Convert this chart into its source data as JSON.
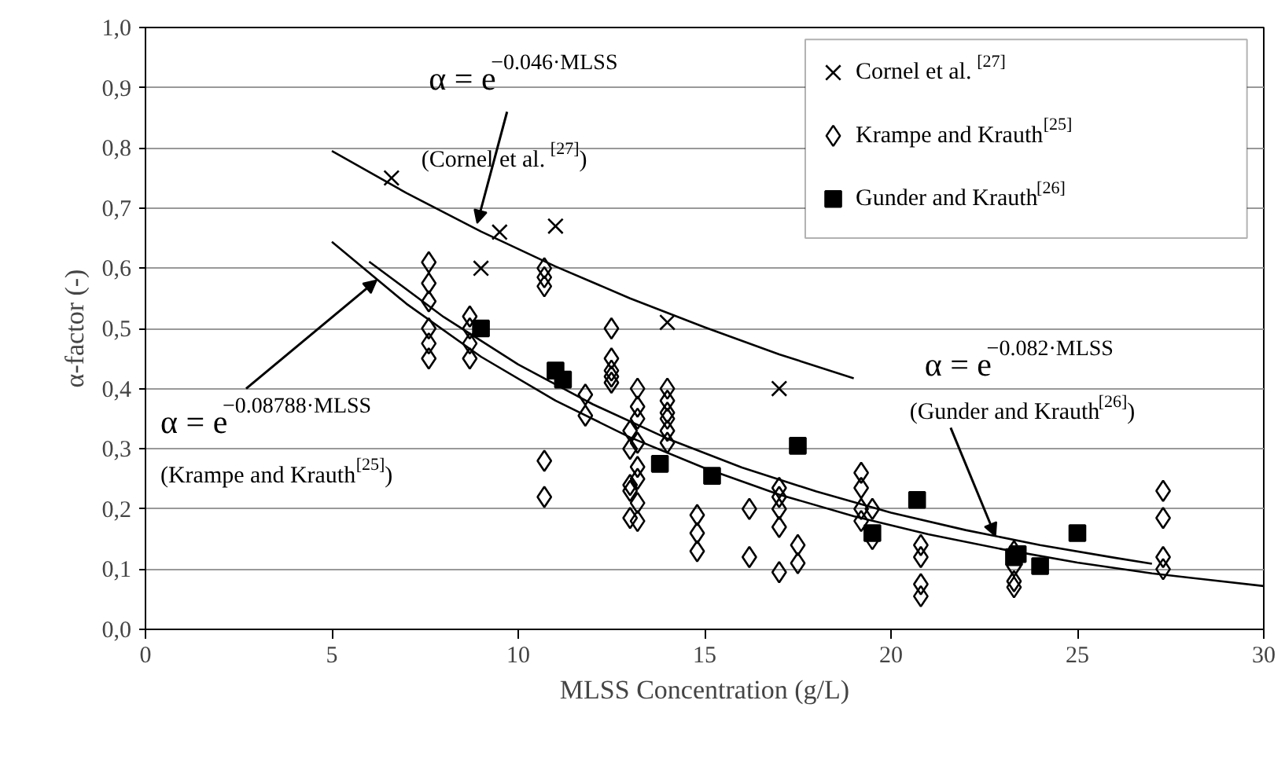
{
  "chart_data": {
    "type": "scatter",
    "xlabel": "MLSS Concentration (g/L)",
    "ylabel": "α-factor (-)",
    "xlim": [
      0,
      30
    ],
    "ylim": [
      0,
      1
    ],
    "xticks": [
      0,
      5,
      10,
      15,
      20,
      25,
      30
    ],
    "yticks": [
      {
        "value": 0,
        "label": "0,0"
      },
      {
        "value": 0.1,
        "label": "0,1"
      },
      {
        "value": 0.2,
        "label": "0,2"
      },
      {
        "value": 0.3,
        "label": "0,3"
      },
      {
        "value": 0.4,
        "label": "0,4"
      },
      {
        "value": 0.5,
        "label": "0,5"
      },
      {
        "value": 0.6,
        "label": "0,6"
      },
      {
        "value": 0.7,
        "label": "0,7"
      },
      {
        "value": 0.8,
        "label": "0,8"
      },
      {
        "value": 0.9,
        "label": "0,9"
      },
      {
        "value": 1,
        "label": "1,0"
      }
    ],
    "grid": "y",
    "legend": "top right",
    "series": [
      {
        "name": "Cornel et al.$^{[27]}$",
        "marker": "cross",
        "color": "#000000",
        "x": [
          6.6,
          9,
          9.5,
          11,
          14,
          17
        ],
        "values": [
          0.75,
          0.6,
          0.66,
          0.67,
          0.51,
          0.4
        ]
      },
      {
        "name": "Krampe and Krauth$^{[25]}$",
        "marker": "diamond",
        "color": "#000000",
        "x": [
          7.6,
          7.6,
          7.6,
          7.6,
          7.6,
          7.6,
          8.7,
          8.7,
          8.7,
          8.7,
          10.7,
          10.7,
          10.7,
          10.7,
          10.7,
          11.8,
          11.8,
          12.5,
          12.5,
          12.5,
          12.5,
          12.5,
          13,
          13,
          13,
          13,
          13,
          13.2,
          13.2,
          13.2,
          13.2,
          13.2,
          13.2,
          13.2,
          13.2,
          14,
          14,
          14,
          14,
          14,
          14,
          14.8,
          14.8,
          14.8,
          16.2,
          16.2,
          17,
          17,
          17,
          17,
          17,
          17.5,
          17.5,
          19.2,
          19.2,
          19.2,
          19.2,
          19.5,
          19.5,
          20.8,
          20.8,
          20.8,
          20.8,
          23.3,
          23.3,
          23.3,
          23.3,
          27.3,
          27.3,
          27.3,
          27.3
        ],
        "values": [
          0.61,
          0.575,
          0.545,
          0.5,
          0.475,
          0.45,
          0.52,
          0.5,
          0.475,
          0.45,
          0.6,
          0.585,
          0.57,
          0.28,
          0.22,
          0.39,
          0.355,
          0.5,
          0.45,
          0.43,
          0.42,
          0.41,
          0.33,
          0.3,
          0.24,
          0.185,
          0.23,
          0.4,
          0.37,
          0.35,
          0.31,
          0.27,
          0.25,
          0.21,
          0.18,
          0.4,
          0.38,
          0.36,
          0.35,
          0.33,
          0.31,
          0.19,
          0.16,
          0.13,
          0.2,
          0.12,
          0.235,
          0.22,
          0.2,
          0.17,
          0.095,
          0.14,
          0.11,
          0.26,
          0.235,
          0.2,
          0.18,
          0.2,
          0.15,
          0.14,
          0.12,
          0.075,
          0.055,
          0.13,
          0.105,
          0.08,
          0.07,
          0.23,
          0.185,
          0.12,
          0.1
        ]
      },
      {
        "name": "Gunder and Krauth$^{[26]}$",
        "marker": "square",
        "color": "#000000",
        "x": [
          9,
          11,
          11.2,
          13.8,
          15.2,
          17.5,
          19.5,
          20.7,
          23.3,
          23.4,
          24,
          25
        ],
        "values": [
          0.5,
          0.43,
          0.415,
          0.275,
          0.255,
          0.305,
          0.16,
          0.215,
          0.12,
          0.125,
          0.105,
          0.16
        ]
      },
      {
        "type": "line",
        "color": "#000000",
        "x": [
          5,
          7,
          9,
          11,
          13,
          15,
          17,
          19
        ],
        "values": [
          0.795,
          0.725,
          0.661,
          0.603,
          0.55,
          0.502,
          0.457,
          0.417
        ]
      },
      {
        "type": "line",
        "color": "#000000",
        "x": [
          5,
          7,
          9,
          11,
          13,
          15,
          17,
          19,
          21,
          23,
          25,
          27,
          30
        ],
        "values": [
          0.644,
          0.541,
          0.453,
          0.38,
          0.319,
          0.268,
          0.224,
          0.188,
          0.158,
          0.133,
          0.111,
          0.093,
          0.072
        ]
      },
      {
        "type": "line",
        "color": "#000000",
        "x": [
          6,
          8,
          10,
          12,
          14,
          16,
          18,
          20,
          22,
          24,
          26,
          27
        ],
        "values": [
          0.611,
          0.519,
          0.44,
          0.374,
          0.317,
          0.269,
          0.229,
          0.194,
          0.165,
          0.14,
          0.119,
          0.109
        ]
      }
    ],
    "annotations": [
      {
        "text": "α = e$^{−0.046·MLSS}$",
        "x": 8.9,
        "y": 0.675
      },
      "(Cornel et al.$^{[27]}$)",
      {
        "text": "α = e$^{−0.08788·MLSS}$",
        "x": 6.2,
        "y": 0.58
      },
      "(Krampe and Krauth$^{[25]}$)",
      "α = e$^{−0.082·MLSS}$",
      {
        "text": "(Gunder and Krauth$^{[26]}$)",
        "x": 22.8,
        "y": 0.155
      }
    ]
  }
}
